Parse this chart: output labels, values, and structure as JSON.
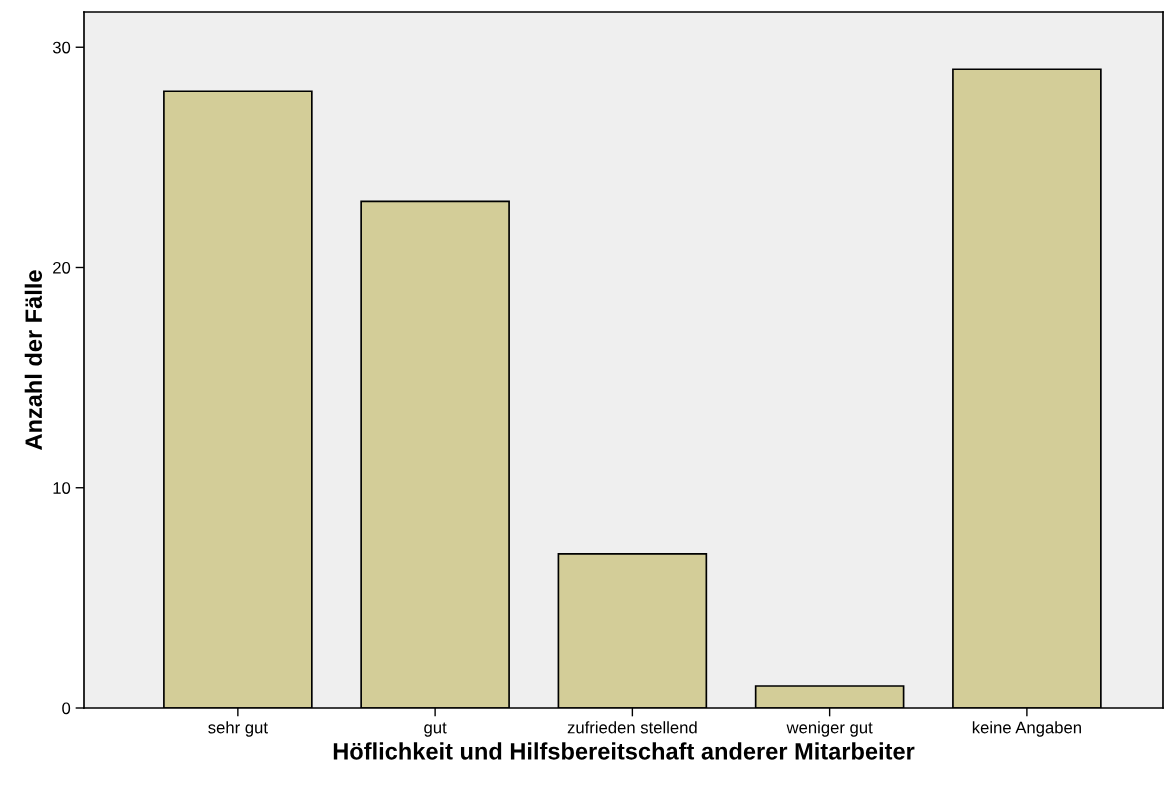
{
  "chart_data": {
    "type": "bar",
    "xlabel": "Höflichkeit und Hilfsbereitschaft anderer Mitarbeiter",
    "ylabel": "Anzahl der Fälle",
    "categories": [
      "sehr gut",
      "gut",
      "zufrieden stellend",
      "weniger gut",
      "keine Angaben"
    ],
    "values": [
      28,
      23,
      7,
      1,
      29
    ],
    "color": "#d3cd98",
    "ylim": [
      0,
      31.6
    ],
    "yticks": [
      0,
      10,
      20,
      30
    ],
    "grid": false,
    "legend": false
  }
}
